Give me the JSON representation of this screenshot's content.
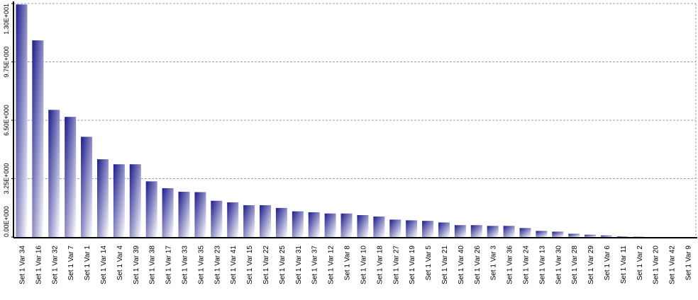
{
  "chart_data": {
    "type": "bar",
    "title": "",
    "xlabel": "",
    "ylabel": "",
    "ylim": [
      0,
      13
    ],
    "yticks": [
      0,
      3.25,
      6.5,
      9.75,
      13
    ],
    "ytick_labels": [
      "0.00E+000",
      "3.25E+000",
      "6.50E+000",
      "9.75E+000",
      "1.30E+001"
    ],
    "grid": "horizontal dashed",
    "legend": "none",
    "colors": {
      "bar_dark": "#1a1a8c",
      "bar_light": "#ffffff",
      "grid": "#a0a0a0",
      "axis": "#000000"
    },
    "categories": [
      "Set 1 Var 34",
      "Set 1 Var 16",
      "Set 1 Var 32",
      "Set 1 Var 7",
      "Set 1 Var 1",
      "Set 1 Var 14",
      "Set 1 Var 4",
      "Set 1 Var 39",
      "Set 1 Var 38",
      "Set 1 Var 17",
      "Set 1 Var 33",
      "Set 1 Var 35",
      "Set 1 Var 23",
      "Set 1 Var 41",
      "Set 1 Var 15",
      "Set 1 Var 22",
      "Set 1 Var 25",
      "Set 1 Var 31",
      "Set 1 Var 37",
      "Set 1 Var 12",
      "Set 1 Var 8",
      "Set 1 Var 10",
      "Set 1 Var 18",
      "Set 1 Var 27",
      "Set 1 Var 19",
      "Set 1 Var 5",
      "Set 1 Var 21",
      "Set 1 Var 40",
      "Set 1 Var 26",
      "Set 1 Var 3",
      "Set 1 Var 36",
      "Set 1 Var 24",
      "Set 1 Var 13",
      "Set 1 Var 30",
      "Set 1 Var 28",
      "Set 1 Var 29",
      "Set 1 Var 6",
      "Set 1 Var 11",
      "Set 1 Var 2",
      "Set 1 Var 20",
      "Set 1 Var 42",
      "Set 1 Var 9"
    ],
    "values": [
      12.95,
      10.95,
      7.08,
      6.69,
      5.58,
      4.33,
      4.05,
      4.05,
      3.1,
      2.72,
      2.52,
      2.5,
      2.02,
      1.93,
      1.77,
      1.77,
      1.62,
      1.43,
      1.38,
      1.31,
      1.31,
      1.22,
      1.14,
      0.97,
      0.93,
      0.9,
      0.81,
      0.66,
      0.66,
      0.62,
      0.62,
      0.5,
      0.34,
      0.3,
      0.18,
      0.13,
      0.09,
      0.04,
      0.02,
      0.0,
      0.0,
      0.0
    ]
  }
}
